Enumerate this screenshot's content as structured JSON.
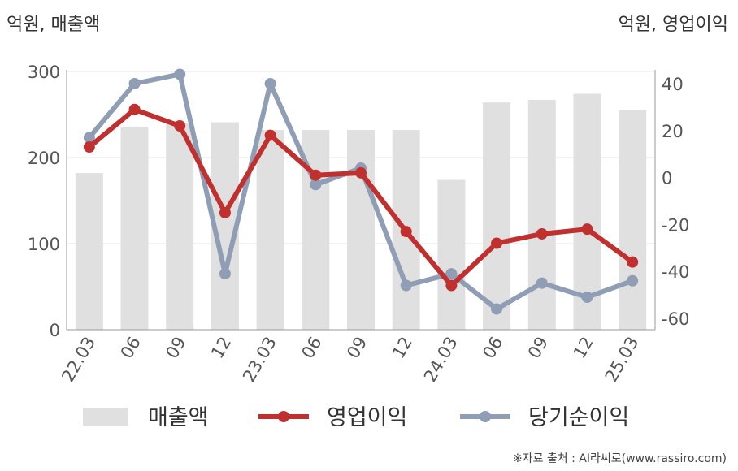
{
  "header": {
    "left_unit": "억원, 매출액",
    "right_unit": "억원, 영업이익"
  },
  "source": "※자료 출처 : AI라씨로(www.rassiro.com)",
  "chart_data": {
    "type": "bar",
    "categories": [
      "22.03",
      "06",
      "09",
      "12",
      "23.03",
      "06",
      "09",
      "12",
      "24.03",
      "06",
      "09",
      "12",
      "25.03"
    ],
    "y_left": {
      "ylim": [
        0,
        300
      ],
      "ticks": [
        "0",
        "100",
        "200",
        "300"
      ]
    },
    "y_right": {
      "ylim": [
        -65,
        48
      ],
      "ticks": [
        "-60",
        "-40",
        "-20",
        "0",
        "20",
        "40"
      ]
    },
    "grid": true,
    "legend_position": "bottom",
    "colors": {
      "bar": "#e0e0e0",
      "op": "#c0302f",
      "net": "#8f9db5",
      "axis": "#999999",
      "grid": "#e6e6e6"
    },
    "series": [
      {
        "name": "매출액",
        "type": "bar",
        "axis": "left",
        "values": [
          182,
          236,
          240,
          241,
          232,
          232,
          232,
          232,
          174,
          264,
          267,
          274,
          255
        ]
      },
      {
        "name": "영업이익",
        "type": "line",
        "axis": "right",
        "values": [
          13,
          29,
          22,
          -15,
          18,
          1,
          2,
          -23,
          -46,
          -28,
          -24,
          -22,
          -36
        ]
      },
      {
        "name": "당기순이익",
        "type": "line",
        "axis": "right",
        "values": [
          17,
          40,
          44,
          -41,
          40,
          -3,
          4,
          -46,
          -41,
          -56,
          -45,
          -51,
          -44
        ]
      }
    ]
  }
}
